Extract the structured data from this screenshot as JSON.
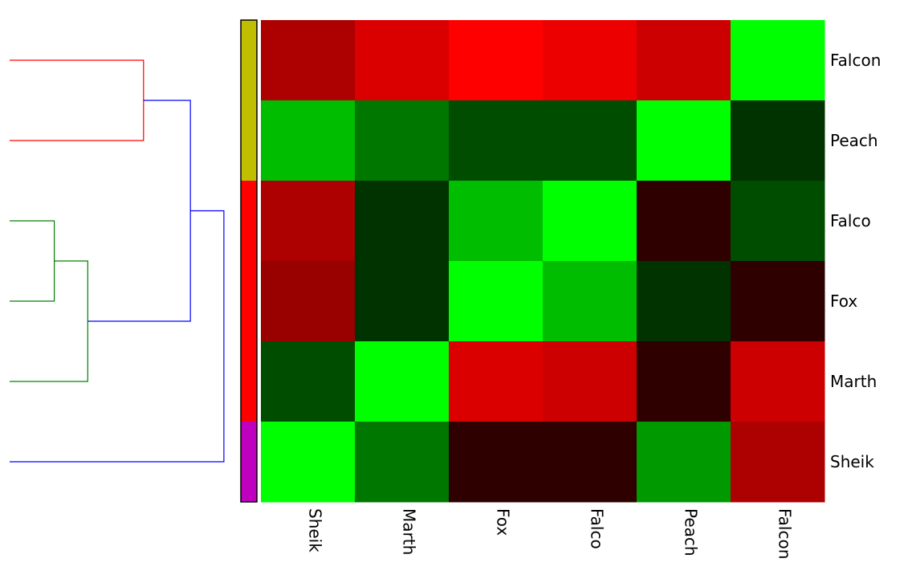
{
  "chart_data": {
    "type": "heatmap",
    "title": "",
    "xlabel": "",
    "ylabel": "",
    "rows": [
      "Falcon",
      "Peach",
      "Falco",
      "Fox",
      "Marth",
      "Sheik"
    ],
    "columns": [
      "Sheik",
      "Marth",
      "Fox",
      "Falco",
      "Peach",
      "Falcon"
    ],
    "values": [
      [
        0.68,
        0.86,
        1.0,
        0.93,
        0.8,
        -1.0
      ],
      [
        -0.74,
        -0.47,
        -0.3,
        -0.3,
        -1.0,
        -0.2
      ],
      [
        0.68,
        -0.2,
        -0.74,
        -1.0,
        0.18,
        -0.3
      ],
      [
        0.6,
        -0.2,
        -1.0,
        -0.74,
        -0.2,
        0.18
      ],
      [
        -0.3,
        -1.0,
        0.86,
        0.8,
        0.18,
        0.8
      ],
      [
        -1.0,
        -0.47,
        0.18,
        0.18,
        -0.6,
        0.68
      ]
    ],
    "colormap": {
      "low": "#00ff00",
      "mid": "#000000",
      "high": "#ff0000"
    },
    "row_clusters": [
      {
        "color": "#bfbf00",
        "rows": [
          "Falcon",
          "Peach"
        ]
      },
      {
        "color": "#ff0000",
        "rows": [
          "Falco",
          "Fox",
          "Marth"
        ]
      },
      {
        "color": "#bf00bf",
        "rows": [
          "Sheik"
        ]
      }
    ],
    "dendrogram": {
      "colors": {
        "cluster_a": "#ff0000",
        "cluster_b": "#008000",
        "link": "#0000ff"
      },
      "merges": [
        {
          "left": "Falcon",
          "right": "Peach",
          "height": 0.6,
          "color": "#ff0000"
        },
        {
          "left": "Falco",
          "right": "Fox",
          "height": 0.2,
          "color": "#008000"
        },
        {
          "left": "Falco+Fox",
          "right": "Marth",
          "height": 0.35,
          "color": "#008000"
        },
        {
          "left": "Falcon+Peach",
          "right": "Falco+Fox+Marth",
          "height": 0.81,
          "color": "#0000ff"
        },
        {
          "left": "Falcon+Peach+Falco+Fox+Marth",
          "right": "Sheik",
          "height": 0.96,
          "color": "#0000ff"
        }
      ]
    }
  }
}
